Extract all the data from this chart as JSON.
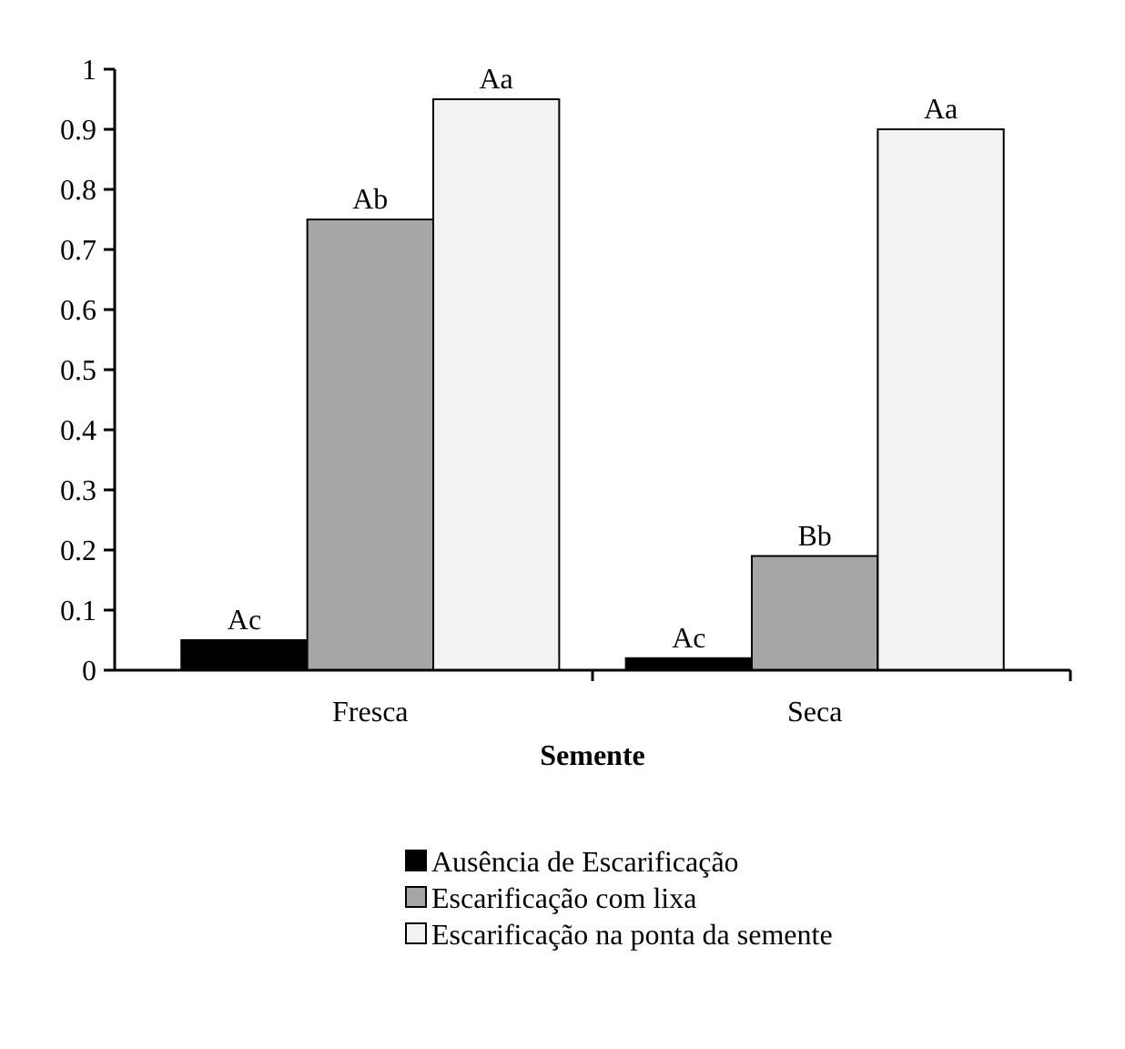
{
  "chart_data": {
    "type": "bar",
    "xlabel": "Semente",
    "categories": [
      "Fresca",
      "Seca"
    ],
    "series": [
      {
        "name": "Ausência de Escarificação",
        "color": "#000000",
        "values": [
          0.05,
          0.02
        ],
        "value_labels": [
          "Ac",
          "Ac"
        ]
      },
      {
        "name": "Escarificação com lixa",
        "color": "#a6a6a6",
        "values": [
          0.75,
          0.19
        ],
        "value_labels": [
          "Ab",
          "Bb"
        ]
      },
      {
        "name": "Escarificação na ponta da semente",
        "color": "#f2f2f2",
        "values": [
          0.95,
          0.9
        ],
        "value_labels": [
          "Aa",
          "Aa"
        ]
      }
    ],
    "ylim": [
      0,
      1
    ],
    "yticks": [
      0,
      0.1,
      0.2,
      0.3,
      0.4,
      0.5,
      0.6,
      0.7,
      0.8,
      0.9,
      1
    ],
    "grid": false,
    "legend": "bottom"
  }
}
